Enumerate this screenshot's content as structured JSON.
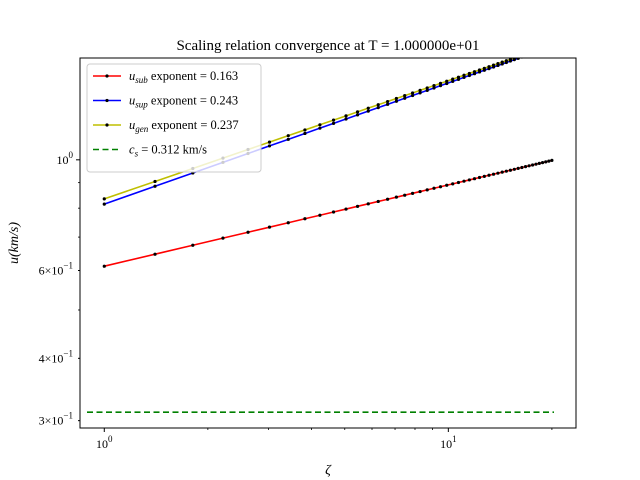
{
  "chart_data": {
    "type": "line",
    "title": "Scaling relation convergence at T = 1.000000e+01",
    "xlabel": "ζ",
    "ylabel": "u(km/s)",
    "xscale": "log",
    "yscale": "log",
    "xlim": [
      0.85,
      23.5
    ],
    "ylim": [
      0.29,
      1.6
    ],
    "x_ticks": [
      {
        "value": 1,
        "base": "10",
        "exp": "0"
      },
      {
        "value": 10,
        "base": "10",
        "exp": "1"
      }
    ],
    "y_ticks": [
      {
        "value": 0.3,
        "mant": "3",
        "base": "10",
        "exp": "−1"
      },
      {
        "value": 0.4,
        "mant": "4",
        "base": "10",
        "exp": "−1"
      },
      {
        "value": 0.6,
        "mant": "6",
        "base": "10",
        "exp": "−1"
      },
      {
        "value": 1.0,
        "mant": "",
        "base": "10",
        "exp": "0"
      }
    ],
    "legend_position": "top-left",
    "grid": false,
    "x_samples": {
      "start": 1,
      "end": 20,
      "count": 48
    },
    "series": [
      {
        "name": "u_sub exponent = 0.163",
        "symbol": "u",
        "sub": "sub",
        "rest": " exponent = 0.163",
        "kind": "power",
        "coef": 0.612,
        "exponent": 0.163,
        "color": "#ff0000",
        "markers": true
      },
      {
        "name": "u_sup exponent = 0.243",
        "symbol": "u",
        "sub": "sup",
        "rest": " exponent = 0.243",
        "kind": "power",
        "coef": 0.815,
        "exponent": 0.243,
        "color": "#0000ff",
        "markers": true
      },
      {
        "name": "u_gen exponent = 0.237",
        "symbol": "u",
        "sub": "gen",
        "rest": " exponent = 0.237",
        "kind": "power",
        "coef": 0.835,
        "exponent": 0.237,
        "color": "#bfbf00",
        "markers": true
      },
      {
        "name": "c_s = 0.312 km/s",
        "symbol": "c",
        "sub": "s",
        "rest": " = 0.312 km/s",
        "kind": "constant",
        "value": 0.312,
        "color": "#008000",
        "dashed": true,
        "markers": false
      }
    ]
  }
}
